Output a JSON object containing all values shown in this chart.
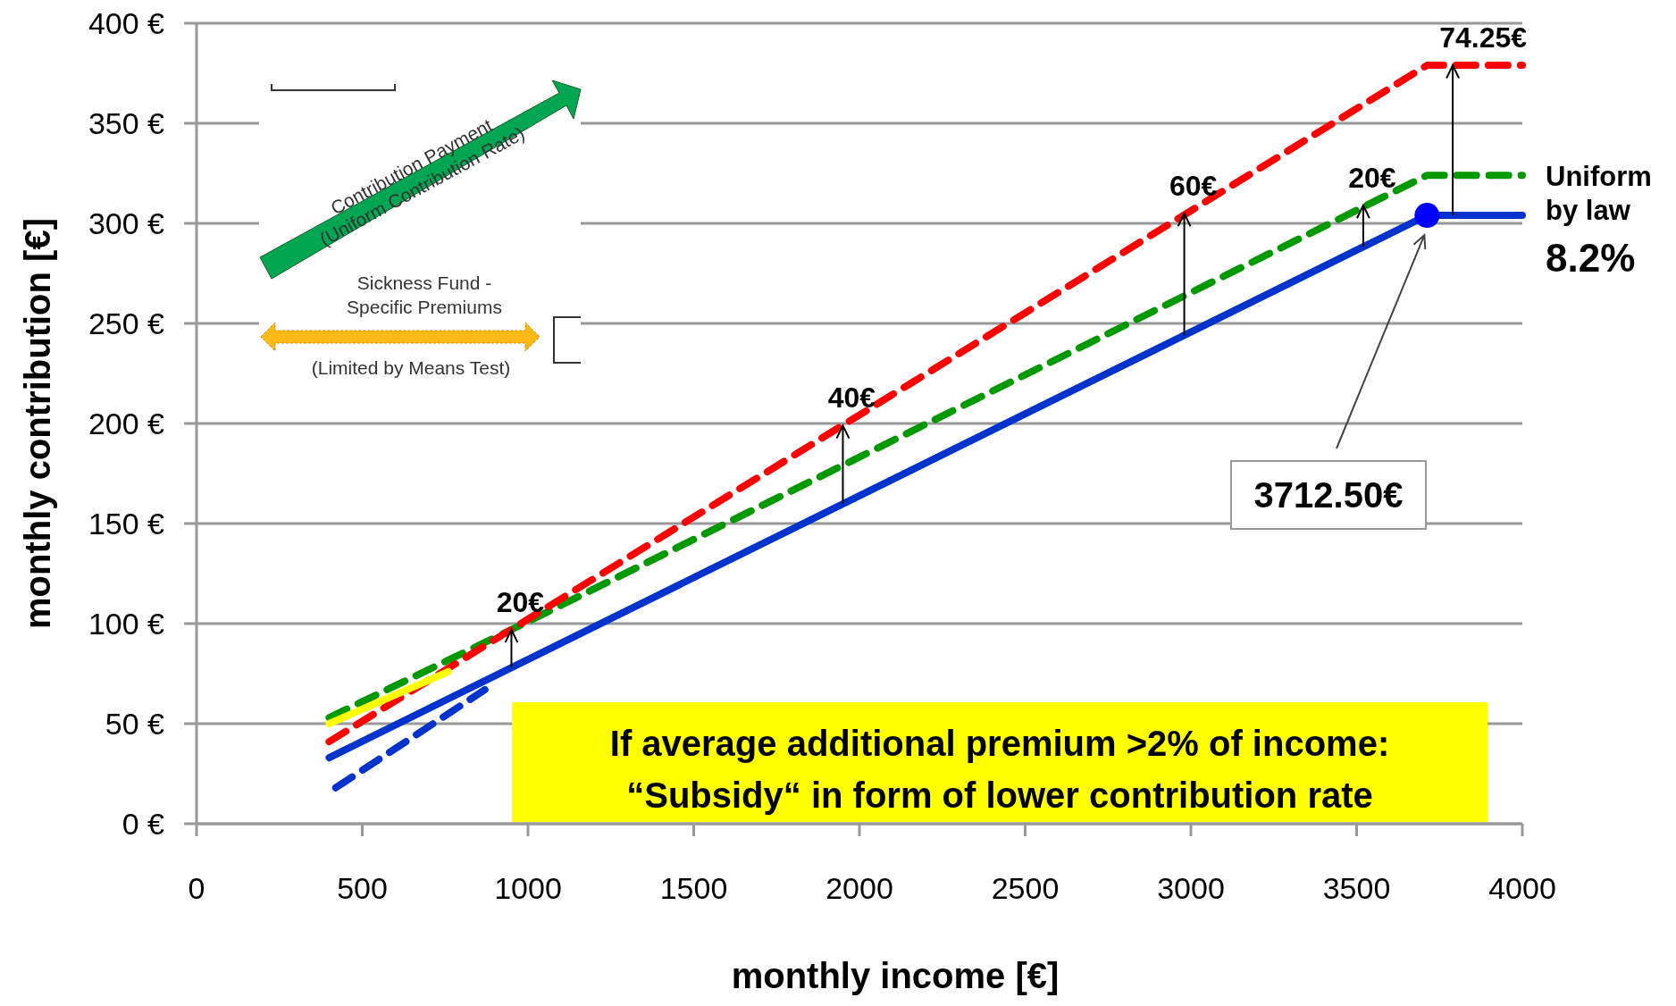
{
  "chart_data": {
    "type": "line",
    "xlabel": "monthly income [€]",
    "ylabel": "monthly contribution [€]",
    "xlim": [
      0,
      4000
    ],
    "xticks": [
      0,
      500,
      1000,
      1500,
      2000,
      2500,
      3000,
      3500,
      4000
    ],
    "ylim": [
      0,
      400
    ],
    "yticks": [
      {
        "value": 0,
        "label": "0 €"
      },
      {
        "value": 50,
        "label": "50 €"
      },
      {
        "value": 100,
        "label": "100 €"
      },
      {
        "value": 150,
        "label": "150 €"
      },
      {
        "value": 200,
        "label": "200 €"
      },
      {
        "value": 250,
        "label": "250 €"
      },
      {
        "value": 300,
        "label": "300 €"
      },
      {
        "value": 350,
        "label": "350 €"
      },
      {
        "value": 400,
        "label": "400 €"
      }
    ],
    "grid": "y",
    "series": [
      {
        "color": "#0033cc",
        "line_style": "solid",
        "x": [
          400,
          3712.5,
          4000
        ],
        "values": [
          33,
          304,
          304
        ]
      },
      {
        "color": "#0033cc",
        "line_style": "dashed",
        "x": [
          420,
          870
        ],
        "values": [
          18,
          67
        ]
      },
      {
        "color": "#009900",
        "line_style": "dashed",
        "x": [
          400,
          1000,
          3712.5,
          4000
        ],
        "values": [
          53,
          101,
          324,
          324
        ]
      },
      {
        "color": "#ff0000",
        "line_style": "dashed",
        "x": [
          400,
          3712.5,
          4000
        ],
        "values": [
          41,
          379,
          379
        ]
      },
      {
        "color": "#ffff00",
        "line_style": "solid",
        "x": [
          400,
          760
        ],
        "values": [
          50,
          76
        ]
      },
      {
        "type": "scatter",
        "marker": "circle",
        "color": "#0000ff",
        "x": [
          3712.5
        ],
        "values": [
          304
        ]
      }
    ],
    "annotations": [
      {
        "text": "20€",
        "x": 950,
        "y": 97
      },
      {
        "text": "40€",
        "x": 1950,
        "y": 199
      },
      {
        "text": "60€",
        "x": 2980,
        "y": 305
      },
      {
        "text": "20€",
        "x": 3520,
        "y": 309
      },
      {
        "text": "74.25€",
        "x": 3790,
        "y": 379
      },
      "3712.50€",
      "Uniform by law",
      "8.2%",
      "If average additional premium >2% of income: “Subsidy“ in form of lower contribution rate",
      "Contribution Payment (Uniform Contribution Rate)",
      "Sickness Fund - Specific Premiums",
      "(Limited by Means Test)"
    ]
  }
}
